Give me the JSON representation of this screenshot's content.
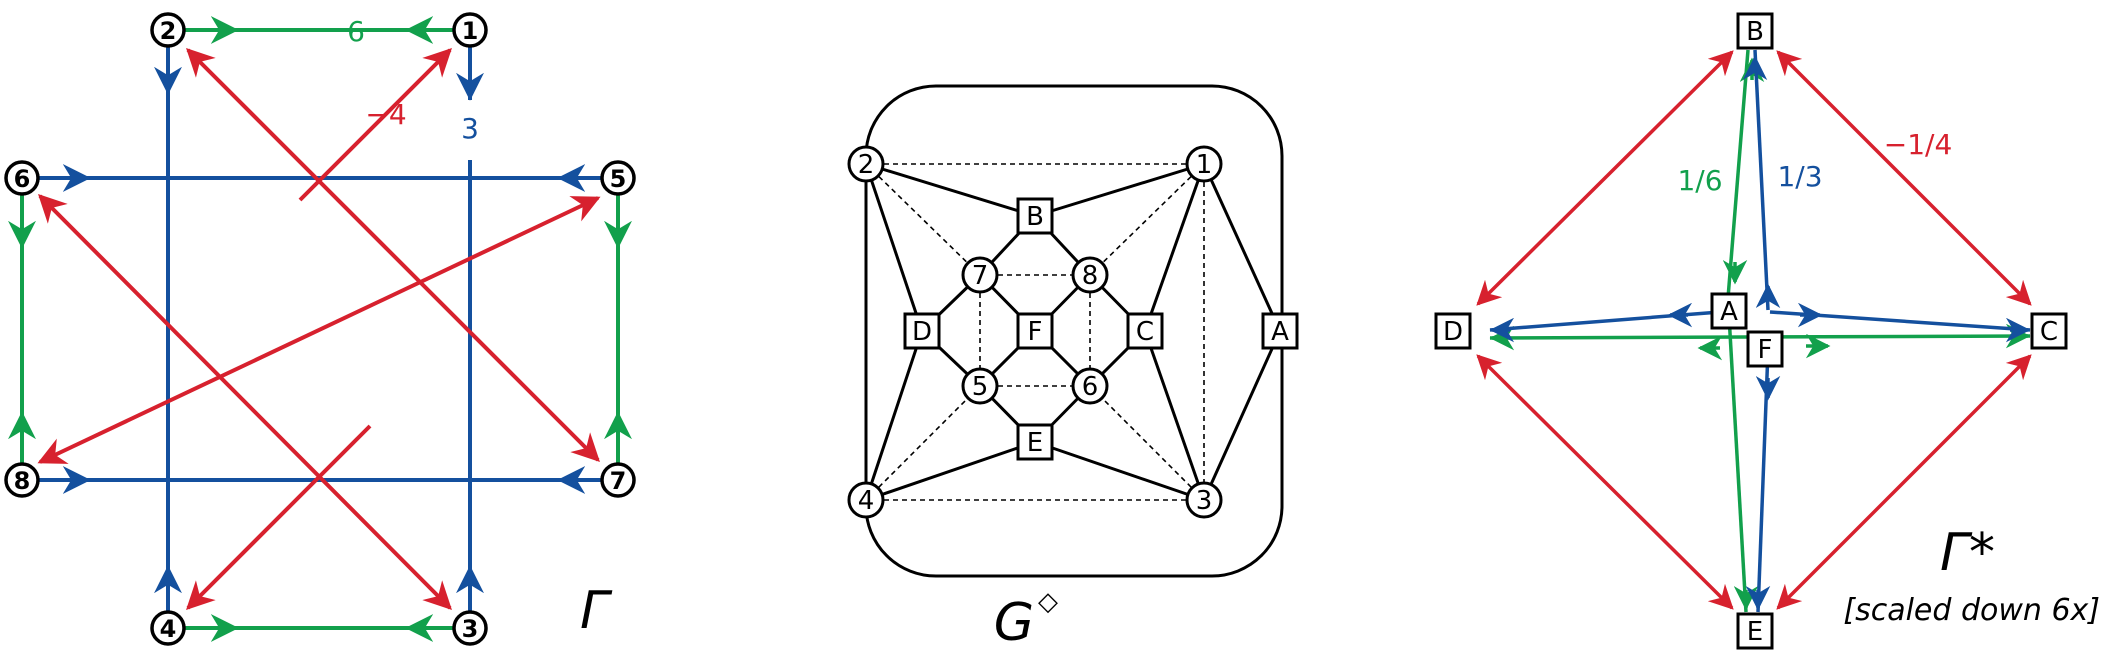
{
  "colors": {
    "red": "#d7212e",
    "blue": "#14509e",
    "green": "#12a04c",
    "black": "#000000"
  },
  "gamma": {
    "nodes": [
      "1",
      "2",
      "3",
      "4",
      "5",
      "6",
      "7",
      "8"
    ],
    "labels": {
      "green": "6",
      "red": "−4",
      "blue": "3"
    },
    "caption": "Γ"
  },
  "gdiamond": {
    "circle_nodes": [
      "1",
      "2",
      "3",
      "4",
      "5",
      "6",
      "7",
      "8"
    ],
    "square_nodes": [
      "A",
      "B",
      "C",
      "D",
      "E",
      "F"
    ],
    "caption_main": "G",
    "caption_sup": "◇"
  },
  "gammastar": {
    "square_nodes": [
      "A",
      "B",
      "C",
      "D",
      "E",
      "F"
    ],
    "labels": {
      "green": "1/6",
      "blue": "1/3",
      "red": "−1/4"
    },
    "caption": "Γ*",
    "subcaption": "[scaled down 6x]"
  }
}
